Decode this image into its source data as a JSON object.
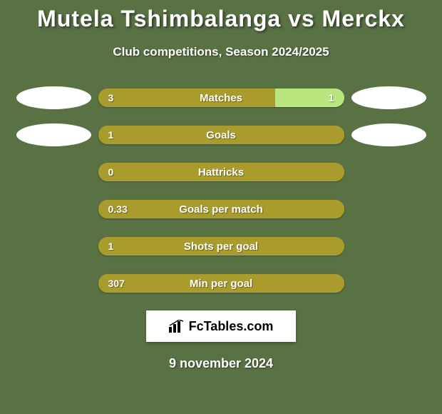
{
  "colors": {
    "page_bg": "#597244",
    "title_color": "#ffffff",
    "subtitle_color": "#ffffff",
    "bar_primary": "#aa9b2d",
    "bar_secondary": "#b9e67e",
    "bar_text": "#ffffff",
    "oval_left": "#ffffff",
    "oval_right": "#ffffff",
    "date_color": "#ffffff",
    "logo_bg": "#ffffff"
  },
  "title": "Mutela Tshimbalanga vs Merckx",
  "subtitle": "Club competitions, Season 2024/2025",
  "stats": [
    {
      "label": "Matches",
      "left_val": "3",
      "right_val": "1",
      "left_pct": 72,
      "show_ovals": true
    },
    {
      "label": "Goals",
      "left_val": "1",
      "right_val": "",
      "left_pct": 100,
      "show_ovals": true
    },
    {
      "label": "Hattricks",
      "left_val": "0",
      "right_val": "",
      "left_pct": 100,
      "show_ovals": false
    },
    {
      "label": "Goals per match",
      "left_val": "0.33",
      "right_val": "",
      "left_pct": 100,
      "show_ovals": false
    },
    {
      "label": "Shots per goal",
      "left_val": "1",
      "right_val": "",
      "left_pct": 100,
      "show_ovals": false
    },
    {
      "label": "Min per goal",
      "left_val": "307",
      "right_val": "",
      "left_pct": 100,
      "show_ovals": false
    }
  ],
  "brand": "FcTables.com",
  "date": "9 november 2024"
}
